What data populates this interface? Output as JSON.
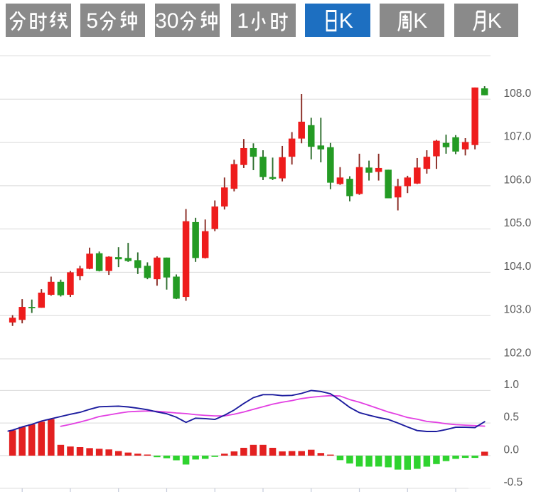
{
  "tabs": [
    {
      "label": "分时线",
      "selected": false
    },
    {
      "label": "5分钟",
      "selected": false
    },
    {
      "label": "30分钟",
      "selected": false
    },
    {
      "label": "1小时",
      "selected": false
    },
    {
      "label": "日K",
      "selected": true
    },
    {
      "label": "周K",
      "selected": false
    },
    {
      "label": "月K",
      "selected": false
    }
  ],
  "colors": {
    "tab_gray": "#8a8a8a",
    "tab_selected_blue": "#1d6fc1",
    "tab_text": "#ffffff",
    "candle_up": "#ee1c1c",
    "candle_down": "#249b24",
    "wick_up": "#8a2b24",
    "wick_down": "#2d6e2d",
    "hist_up": "#e32020",
    "hist_down": "#2fd32f",
    "dif_line": "#1c1c9e",
    "dea_line": "#e23fe2",
    "grid": "#d9d9d9",
    "axis_label": "#5a5a5a",
    "tick": "#c3c9da"
  },
  "chart_data": {
    "type": "candlestick_with_macd",
    "title": "",
    "panes": [
      {
        "name": "price",
        "ylabels": [
          "108.0",
          "107.0",
          "106.0",
          "105.0",
          "104.0",
          "103.0",
          "102.0"
        ],
        "yrange": [
          101.45,
          109.3
        ],
        "gridlines": [
          109,
          108,
          107,
          106,
          105,
          104,
          103,
          102
        ]
      },
      {
        "name": "macd",
        "ylabels": [
          "1.0",
          "0.5",
          "0.0",
          "-0.5"
        ],
        "yrange": [
          -0.56,
          1.2
        ],
        "gridlines": [
          1.0,
          0.5,
          0.0,
          -0.5
        ]
      }
    ],
    "legend_position": "none",
    "grid": true,
    "x_tick_every": 5,
    "candles_ohlc_hl": [
      [
        102.84,
        102.95,
        103.01,
        102.76
      ],
      [
        102.9,
        103.2,
        103.38,
        102.82
      ],
      [
        103.2,
        103.17,
        103.37,
        103.06
      ],
      [
        103.18,
        103.53,
        103.61,
        103.18
      ],
      [
        103.48,
        103.78,
        103.9,
        103.46
      ],
      [
        103.78,
        103.47,
        103.83,
        103.44
      ],
      [
        103.48,
        104.0,
        104.03,
        103.43
      ],
      [
        103.91,
        104.09,
        104.15,
        103.82
      ],
      [
        104.08,
        104.43,
        104.57,
        104.07
      ],
      [
        104.44,
        104.03,
        104.48,
        104.02
      ],
      [
        104.03,
        104.36,
        104.37,
        103.94
      ],
      [
        104.35,
        104.3,
        104.58,
        104.12
      ],
      [
        104.33,
        104.26,
        104.68,
        104.24
      ],
      [
        104.28,
        104.1,
        104.46,
        103.96
      ],
      [
        104.15,
        103.87,
        104.23,
        103.84
      ],
      [
        103.84,
        104.34,
        104.37,
        103.69
      ],
      [
        104.34,
        103.88,
        104.34,
        103.6
      ],
      [
        103.9,
        103.39,
        103.95,
        103.38
      ],
      [
        103.43,
        105.18,
        105.46,
        103.34
      ],
      [
        105.16,
        104.33,
        105.26,
        104.24
      ],
      [
        104.33,
        104.95,
        105.22,
        104.32
      ],
      [
        105.0,
        105.52,
        105.66,
        104.95
      ],
      [
        105.52,
        105.96,
        106.19,
        105.45
      ],
      [
        105.93,
        106.5,
        106.6,
        105.87
      ],
      [
        106.48,
        106.87,
        107.08,
        106.41
      ],
      [
        106.87,
        106.67,
        106.98,
        106.36
      ],
      [
        106.67,
        106.2,
        106.82,
        106.13
      ],
      [
        106.2,
        106.16,
        106.65,
        106.13
      ],
      [
        106.17,
        106.66,
        106.92,
        106.1
      ],
      [
        106.67,
        107.09,
        107.24,
        106.49
      ],
      [
        107.09,
        107.48,
        108.12,
        106.98
      ],
      [
        107.4,
        106.9,
        107.57,
        106.61
      ],
      [
        106.93,
        106.84,
        107.57,
        106.54
      ],
      [
        106.89,
        106.07,
        106.99,
        105.92
      ],
      [
        106.04,
        106.19,
        106.43,
        106.02
      ],
      [
        106.16,
        105.76,
        106.22,
        105.64
      ],
      [
        105.81,
        106.43,
        106.74,
        105.79
      ],
      [
        106.42,
        106.3,
        106.58,
        106.12
      ],
      [
        106.32,
        106.41,
        106.74,
        106.12
      ],
      [
        106.37,
        105.71,
        106.37,
        105.71
      ],
      [
        105.73,
        105.99,
        106.16,
        105.43
      ],
      [
        105.99,
        106.19,
        106.23,
        105.83
      ],
      [
        106.05,
        106.42,
        106.64,
        106.04
      ],
      [
        106.39,
        106.67,
        106.82,
        106.28
      ],
      [
        106.68,
        107.04,
        107.06,
        106.39
      ],
      [
        106.99,
        106.89,
        107.18,
        106.74
      ],
      [
        107.12,
        106.79,
        107.17,
        106.73
      ],
      [
        106.84,
        107.01,
        107.1,
        106.7
      ],
      [
        106.94,
        108.27,
        108.27,
        106.84
      ],
      [
        108.25,
        108.09,
        108.3,
        108.09
      ]
    ],
    "macd_dif": [
      0.39,
      0.44,
      0.48,
      0.53,
      0.565,
      0.6,
      0.635,
      0.665,
      0.71,
      0.75,
      0.755,
      0.76,
      0.748,
      0.728,
      0.705,
      0.67,
      0.643,
      0.59,
      0.51,
      0.575,
      0.568,
      0.555,
      0.62,
      0.7,
      0.8,
      0.89,
      0.935,
      0.935,
      0.92,
      0.925,
      0.955,
      1.0,
      0.985,
      0.95,
      0.85,
      0.74,
      0.66,
      0.62,
      0.585,
      0.555,
      0.5,
      0.44,
      0.385,
      0.37,
      0.37,
      0.4,
      0.435,
      0.435,
      0.43,
      0.52
    ],
    "macd_dea": [
      null,
      null,
      null,
      null,
      null,
      0.45,
      0.48,
      0.515,
      0.555,
      0.6,
      0.625,
      0.65,
      0.672,
      0.68,
      0.685,
      0.68,
      0.668,
      0.655,
      0.645,
      0.628,
      0.617,
      0.61,
      0.61,
      0.635,
      0.67,
      0.71,
      0.75,
      0.79,
      0.82,
      0.845,
      0.875,
      0.895,
      0.91,
      0.92,
      0.915,
      0.86,
      0.82,
      0.77,
      0.72,
      0.67,
      0.63,
      0.585,
      0.56,
      0.525,
      0.51,
      0.49,
      0.475,
      0.468,
      0.46,
      0.452
    ],
    "macd_hist": [
      0.39,
      0.44,
      0.48,
      0.52,
      0.56,
      0.165,
      0.14,
      0.13,
      0.115,
      0.105,
      0.095,
      0.07,
      0.047,
      0.03,
      0.016,
      -0.025,
      -0.04,
      -0.072,
      -0.137,
      -0.06,
      -0.05,
      -0.02,
      0.03,
      0.065,
      0.12,
      0.165,
      0.165,
      0.12,
      0.065,
      0.07,
      0.07,
      0.09,
      0.04,
      0.015,
      -0.07,
      -0.12,
      -0.168,
      -0.17,
      -0.168,
      -0.18,
      -0.215,
      -0.217,
      -0.203,
      -0.17,
      -0.13,
      -0.084,
      -0.05,
      -0.035,
      -0.035,
      0.06
    ]
  }
}
